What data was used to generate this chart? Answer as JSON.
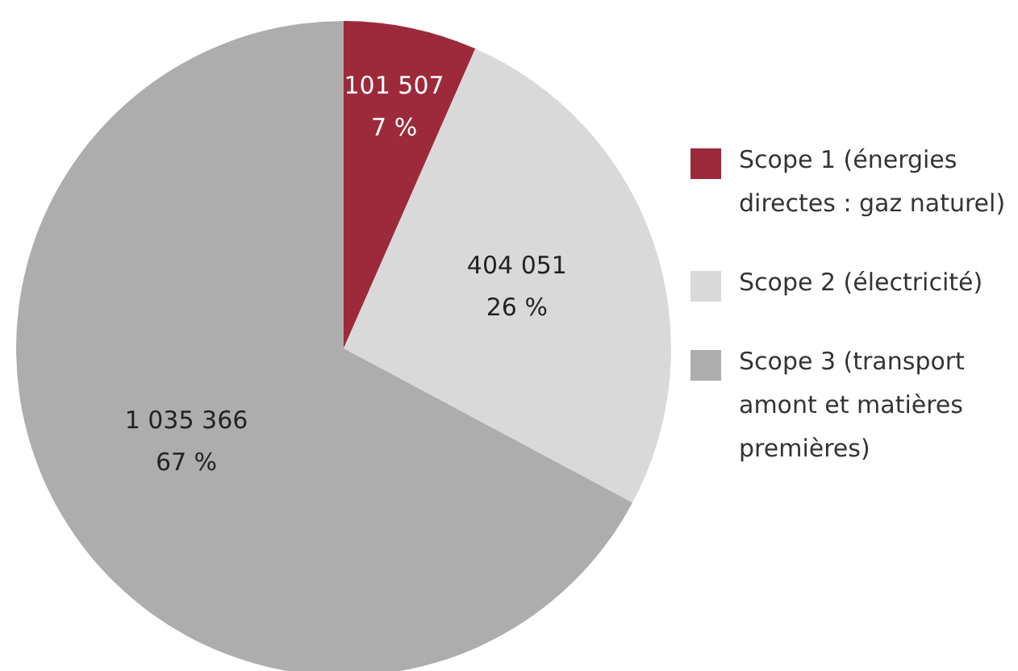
{
  "chart_data": {
    "type": "pie",
    "categories": [
      "Scope 1 (énergies directes : gaz naturel)",
      "Scope 2 (électricité)",
      "Scope 3 (transport amont et matières premières)"
    ],
    "values": [
      101507,
      404051,
      1035366
    ],
    "colors": [
      "#9d2a3b",
      "#d9d9d9",
      "#adadad"
    ],
    "value_labels": [
      "101 507\n7 %",
      "404 051\n26 %",
      "1 035 366\n67 %"
    ],
    "legend": "right"
  }
}
